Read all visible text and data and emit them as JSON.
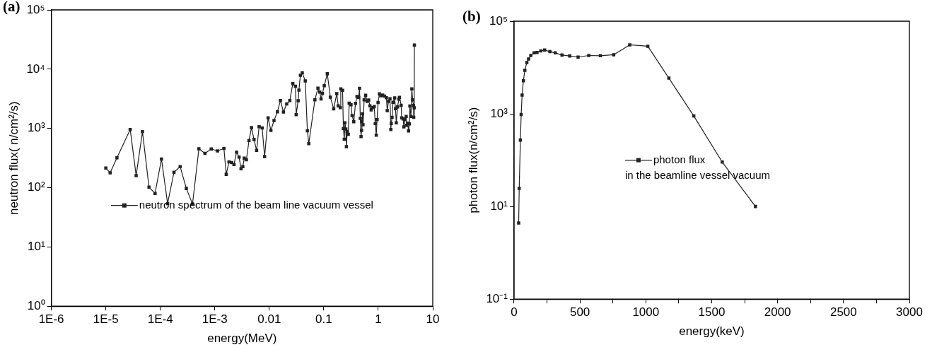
{
  "chart_data": [
    {
      "type": "line",
      "title": "(a)",
      "xlabel": "energy(MeV)",
      "ylabel": "neutron flux( n/cm²/s)",
      "log": "xy",
      "grid": false,
      "legend": "bottom",
      "marker": "square",
      "line_style": "solid",
      "xlim": [
        1e-06,
        10
      ],
      "xticks": [
        {
          "value": 1e-06,
          "label": "1E-6"
        },
        {
          "value": 1e-05,
          "label": "1E-5"
        },
        {
          "value": 0.0001,
          "label": "1E-4"
        },
        {
          "value": 0.001,
          "label": "1E-3"
        },
        0.01,
        0.1,
        1,
        10
      ],
      "ylim": [
        1,
        100000
      ],
      "yticks": [
        {
          "value": 1,
          "label": "10⁰"
        },
        {
          "value": 10,
          "label": "10¹"
        },
        {
          "value": 100,
          "label": "10²"
        },
        {
          "value": 1000,
          "label": "10³"
        },
        {
          "value": 10000,
          "label": "10⁴"
        },
        {
          "value": 100000,
          "label": "10⁵"
        }
      ],
      "series": [
        {
          "name": "neutron spectrum of the beam line vacuum vessel",
          "color": "#222222",
          "x": [
            1e-05,
            1.2e-05,
            1.6e-05,
            2.8e-05,
            3.6e-05,
            4.7e-05,
            6.2e-05,
            8e-05,
            0.000105,
            0.000136,
            0.000178,
            0.000231,
            0.0003,
            0.00039,
            0.00051,
            0.00066,
            0.00086,
            0.00112,
            0.00147,
            0.00162,
            0.00182,
            0.00204,
            0.00225,
            0.00251,
            0.00279,
            0.00303,
            0.00327,
            0.00347,
            0.0038,
            0.00424,
            0.00471,
            0.00525,
            0.00585,
            0.0065,
            0.0074,
            0.0082,
            0.0095,
            0.0107,
            0.0122,
            0.0141,
            0.016,
            0.0182,
            0.0209,
            0.0238,
            0.027,
            0.0302,
            0.0311,
            0.0339,
            0.035,
            0.0372,
            0.0403,
            0.0457,
            0.05,
            0.0531,
            0.0687,
            0.0782,
            0.0843,
            0.0891,
            0.0946,
            0.102,
            0.116,
            0.132,
            0.152,
            0.173,
            0.184,
            0.201,
            0.205,
            0.221,
            0.229,
            0.238,
            0.244,
            0.254,
            0.26,
            0.269,
            0.282,
            0.292,
            0.316,
            0.331,
            0.355,
            0.382,
            0.407,
            0.437,
            0.453,
            0.468,
            0.483,
            0.494,
            0.501,
            0.513,
            0.525,
            0.55,
            0.586,
            0.625,
            0.667,
            0.703,
            0.741,
            0.794,
            0.843,
            0.881,
            0.918,
            0.951,
            0.991,
            1.05,
            1.12,
            1.2,
            1.3,
            1.41,
            1.46,
            1.54,
            1.64,
            1.7,
            1.73,
            1.79,
            1.86,
            2.0,
            2.07,
            2.14,
            2.26,
            2.39,
            2.45,
            2.63,
            2.69,
            2.86,
            2.95,
            3.09,
            3.25,
            3.31,
            3.47,
            3.59,
            3.72,
            3.8,
            3.98,
            4.13,
            4.27,
            4.42,
            4.47,
            4.57,
            4.6
          ],
          "values": [
            214,
            178,
            320,
            960,
            160,
            880,
            102,
            80,
            305,
            54,
            182,
            227,
            97,
            53,
            452,
            380,
            450,
            417,
            460,
            168,
            273,
            266,
            246,
            398,
            329,
            208,
            227,
            314,
            296,
            626,
            1030,
            650,
            425,
            1070,
            1020,
            335,
            1510,
            925,
            1360,
            1910,
            2960,
            1890,
            2590,
            2960,
            5690,
            5140,
            1710,
            2940,
            4440,
            7880,
            8700,
            6310,
            915,
            554,
            3040,
            4780,
            4100,
            3150,
            3890,
            5260,
            8360,
            3370,
            2140,
            3850,
            2410,
            2240,
            4640,
            4400,
            1000,
            655,
            1245,
            975,
            492,
            890,
            795,
            2660,
            2500,
            1650,
            1300,
            2640,
            3460,
            3320,
            4730,
            1480,
            730,
            925,
            1300,
            1760,
            1150,
            3040,
            3630,
            2860,
            3010,
            2400,
            2060,
            2240,
            2340,
            1210,
            767,
            1410,
            2740,
            3820,
            3550,
            3660,
            3500,
            3290,
            2000,
            2860,
            3170,
            960,
            1210,
            1540,
            2760,
            3270,
            2150,
            1245,
            2310,
            3120,
            3350,
            2460,
            1510,
            1450,
            1060,
            1410,
            1590,
            1130,
            1230,
            910,
            1190,
            2380,
            1590,
            4640,
            3040,
            2440,
            1540,
            2230,
            25500
          ]
        }
      ]
    },
    {
      "type": "line",
      "title": "(b)",
      "xlabel": "energy(keV)",
      "ylabel": "photon flux(n/cm²/s)",
      "log": "y",
      "grid": false,
      "legend": "center",
      "marker": "square",
      "line_style": "solid",
      "xlim": [
        0,
        3000
      ],
      "xticks": [
        0,
        {
          "value": 250,
          "label": null
        },
        500,
        {
          "value": 750,
          "label": null
        },
        1000,
        {
          "value": 1250,
          "label": null
        },
        1500,
        {
          "value": 1750,
          "label": null
        },
        2000,
        {
          "value": 2250,
          "label": null
        },
        2500,
        {
          "value": 2750,
          "label": null
        },
        3000
      ],
      "ylim": [
        0.1,
        100000
      ],
      "yticks": [
        {
          "value": 0.1,
          "label": "10⁻¹"
        },
        {
          "value": 10,
          "label": "10¹"
        },
        {
          "value": 1000,
          "label": "10³"
        },
        {
          "value": 100000,
          "label": "10⁵"
        }
      ],
      "series": [
        {
          "name": "photon flux\nin the beamline vessel vacuum",
          "color": "#222222",
          "x": [
            35,
            39,
            48,
            54,
            61,
            71,
            82,
            97,
            110,
            127,
            152,
            174,
            203,
            232,
            272,
            313,
            364,
            422,
            486,
            567,
            655,
            756,
            878,
            1015,
            1175,
            1364,
            1580,
            1832
          ],
          "values": [
            4.4,
            24.7,
            272,
            966,
            2550,
            5190,
            8720,
            12800,
            15300,
            18200,
            20700,
            21200,
            22800,
            23900,
            22000,
            20700,
            18600,
            17800,
            16800,
            18200,
            18000,
            18900,
            30900,
            28800,
            5900,
            900,
            91,
            10
          ]
        }
      ]
    }
  ]
}
